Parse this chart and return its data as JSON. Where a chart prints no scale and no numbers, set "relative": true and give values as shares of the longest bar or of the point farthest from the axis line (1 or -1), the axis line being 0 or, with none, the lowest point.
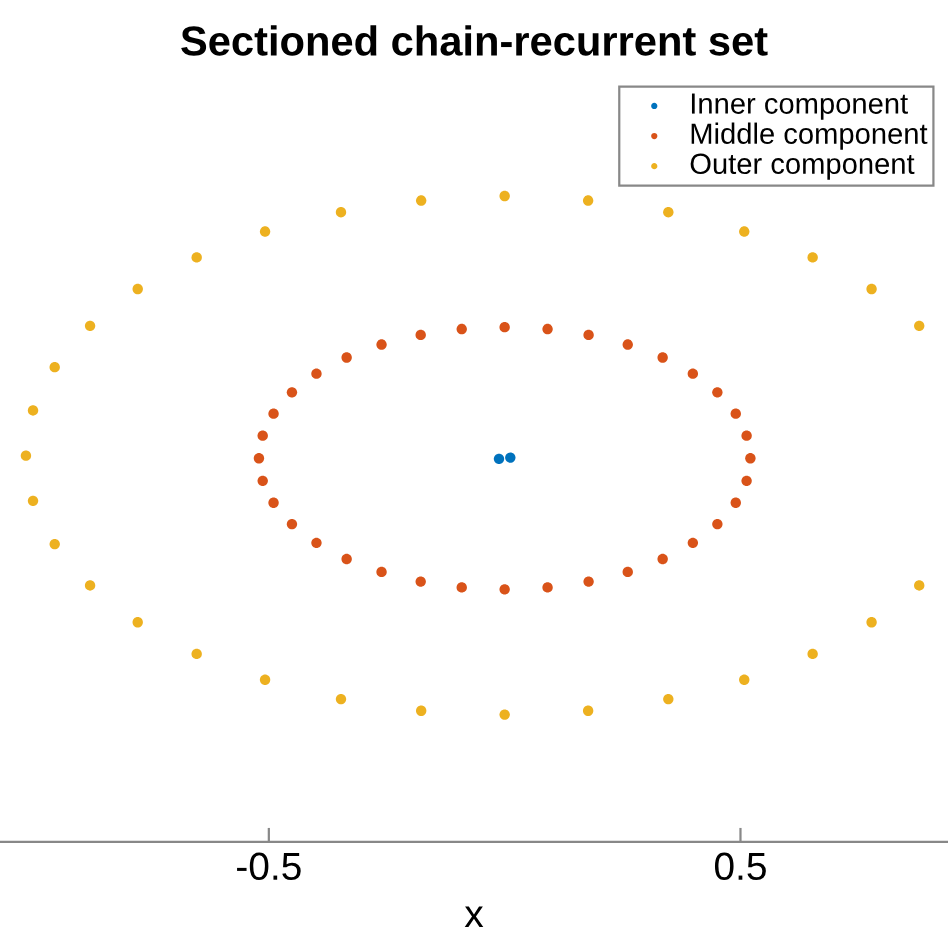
{
  "chart_data": {
    "type": "scatter",
    "title": "Sectioned chain-recurrent set",
    "xlabel": "x",
    "relative": true,
    "marker": "circle",
    "legend": "top right",
    "tick_labels": "x",
    "xlim": [
      -1.07,
      0.94
    ],
    "xticks": [
      -0.5,
      0.5
    ],
    "series": [
      {
        "name": "Inner component",
        "color": "#0072bd",
        "x": [
          -0.012,
          0.012
        ],
        "values": [
          0.593,
          0.595
        ]
      },
      {
        "name": "Middle component",
        "color": "#d95319",
        "x": [
          0.521,
          0.513,
          0.49,
          0.451,
          0.399,
          0.335,
          0.261,
          0.178,
          0.091,
          0,
          -0.091,
          -0.178,
          -0.261,
          -0.335,
          -0.399,
          -0.451,
          -0.49,
          -0.513,
          -0.521,
          -0.513,
          -0.49,
          -0.451,
          -0.399,
          -0.335,
          -0.261,
          -0.178,
          -0.091,
          0,
          0.091,
          0.178,
          0.261,
          0.335,
          0.399,
          0.451,
          0.49,
          0.513
        ],
        "values": [
          0.594,
          0.629,
          0.663,
          0.696,
          0.725,
          0.75,
          0.77,
          0.785,
          0.794,
          0.797,
          0.794,
          0.785,
          0.77,
          0.75,
          0.725,
          0.696,
          0.663,
          0.629,
          0.594,
          0.559,
          0.525,
          0.492,
          0.463,
          0.438,
          0.418,
          0.403,
          0.394,
          0.391,
          0.394,
          0.403,
          0.418,
          0.438,
          0.463,
          0.492,
          0.525,
          0.559
        ]
      },
      {
        "name": "Outer component",
        "color": "#edb120",
        "x": [
          0.879,
          0.778,
          0.653,
          0.508,
          0.347,
          0.177,
          0,
          -0.177,
          -0.347,
          -0.508,
          -0.653,
          -0.778,
          -0.879,
          -0.954,
          -1.0,
          -1.015,
          -1.0,
          -0.954,
          -0.879,
          -0.778,
          -0.653,
          -0.508,
          -0.347,
          -0.177,
          0,
          0.177,
          0.347,
          0.508,
          0.653,
          0.778,
          0.879
        ],
        "values": [
          0.799,
          0.856,
          0.905,
          0.945,
          0.975,
          0.993,
          1.0,
          0.993,
          0.975,
          0.945,
          0.905,
          0.856,
          0.799,
          0.735,
          0.668,
          0.598,
          0.528,
          0.461,
          0.397,
          0.34,
          0.291,
          0.251,
          0.221,
          0.203,
          0.197,
          0.203,
          0.221,
          0.251,
          0.291,
          0.34,
          0.397
        ]
      }
    ]
  }
}
